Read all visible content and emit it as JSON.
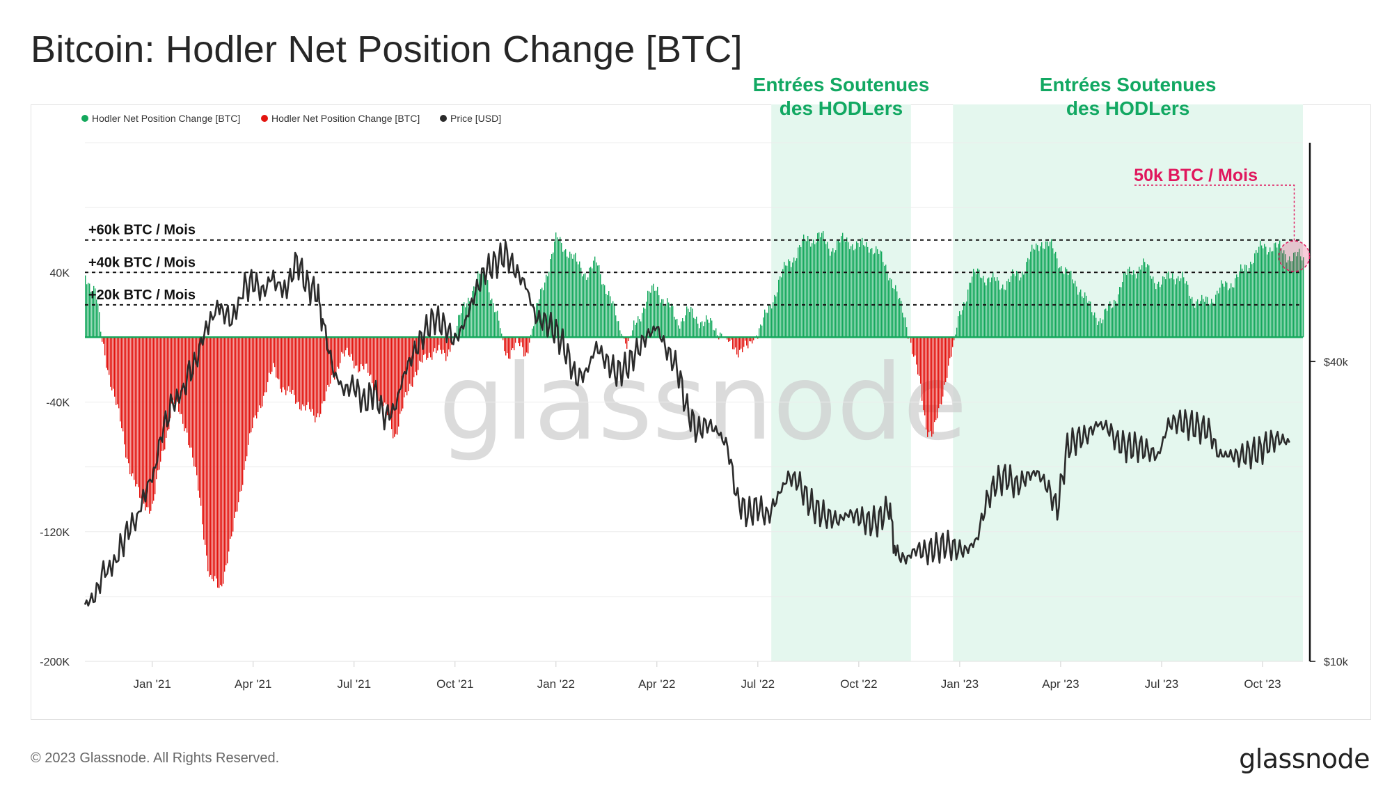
{
  "title": "Bitcoin: Hodler Net Position Change [BTC]",
  "footer": {
    "copyright": "© 2023 Glassnode. All Rights Reserved.",
    "brand": "glassnode"
  },
  "watermark": "glassnode",
  "colors": {
    "positive": "#14a85c",
    "negative": "#e3140f",
    "price": "#2b2b2b",
    "highlight": "#e4f7ee",
    "accent": "#e0175d",
    "green_text": "#12a862"
  },
  "chart_data": {
    "type": "bar",
    "title": "Bitcoin: Hodler Net Position Change [BTC]",
    "legend": [
      {
        "label": "Hodler Net Position Change [BTC]",
        "color": "#14a85c"
      },
      {
        "label": "Hodler Net Position Change [BTC]",
        "color": "#e3140f"
      },
      {
        "label": "Price [USD]",
        "color": "#2b2b2b"
      }
    ],
    "x_ticks": [
      "Jan '21",
      "Apr '21",
      "Jul '21",
      "Oct '21",
      "Jan '22",
      "Apr '22",
      "Jul '22",
      "Oct '22",
      "Jan '23",
      "Apr '23",
      "Jul '23",
      "Oct '23"
    ],
    "x_tick_months": [
      2,
      5,
      8,
      11,
      14,
      17,
      20,
      23,
      26,
      29,
      32,
      35
    ],
    "x_range_months": [
      0,
      36.2
    ],
    "y_left": {
      "ticks": [
        "40K",
        "-40K",
        "-120K",
        "-200K"
      ],
      "tick_values": [
        40000,
        -40000,
        -120000,
        -200000
      ],
      "range": [
        -200000,
        120000
      ]
    },
    "y_right": {
      "ticks": [
        "$40k",
        "$10k"
      ],
      "tick_values": [
        40000,
        10000
      ],
      "scale": "log",
      "range": [
        10000,
        110000
      ]
    },
    "reference_lines": [
      {
        "label": "+60k BTC / Mois",
        "value": 60000
      },
      {
        "label": "+40k BTC / Mois",
        "value": 40000
      },
      {
        "label": "+20k BTC / Mois",
        "value": 20000
      }
    ],
    "highlight_regions": [
      {
        "label_line1": "Entrées Soutenues",
        "label_line2": "des HODLers",
        "start_month": 20.4,
        "end_month": 24.55
      },
      {
        "label_line1": "Entrées Soutenues",
        "label_line2": "des HODLers",
        "start_month": 25.8,
        "end_month": 36.2
      }
    ],
    "annotation": {
      "label": "50k BTC / Mois",
      "month": 35.9,
      "value": 50000
    },
    "net_position_points": [
      [
        0.0,
        37000
      ],
      [
        0.3,
        30000
      ],
      [
        0.5,
        -5000
      ],
      [
        0.8,
        -30000
      ],
      [
        1.2,
        -70000
      ],
      [
        1.6,
        -100000
      ],
      [
        2.0,
        -105000
      ],
      [
        2.3,
        -70000
      ],
      [
        2.6,
        -40000
      ],
      [
        3.0,
        -55000
      ],
      [
        3.4,
        -100000
      ],
      [
        3.7,
        -150000
      ],
      [
        4.0,
        -155000
      ],
      [
        4.4,
        -120000
      ],
      [
        4.8,
        -70000
      ],
      [
        5.2,
        -40000
      ],
      [
        5.6,
        -20000
      ],
      [
        6.0,
        -35000
      ],
      [
        6.4,
        -40000
      ],
      [
        6.8,
        -50000
      ],
      [
        7.2,
        -35000
      ],
      [
        7.6,
        -10000
      ],
      [
        8.0,
        -15000
      ],
      [
        8.3,
        -20000
      ],
      [
        8.6,
        -30000
      ],
      [
        8.9,
        -45000
      ],
      [
        9.2,
        -60000
      ],
      [
        9.5,
        -40000
      ],
      [
        9.8,
        -20000
      ],
      [
        10.1,
        -15000
      ],
      [
        10.4,
        -5000
      ],
      [
        10.7,
        -15000
      ],
      [
        11.0,
        5000
      ],
      [
        11.3,
        20000
      ],
      [
        11.6,
        35000
      ],
      [
        11.9,
        40000
      ],
      [
        12.2,
        15000
      ],
      [
        12.5,
        -10000
      ],
      [
        12.8,
        -5000
      ],
      [
        13.1,
        -10000
      ],
      [
        13.4,
        15000
      ],
      [
        13.7,
        40000
      ],
      [
        14.0,
        60000
      ],
      [
        14.3,
        55000
      ],
      [
        14.6,
        45000
      ],
      [
        14.9,
        40000
      ],
      [
        15.2,
        45000
      ],
      [
        15.5,
        30000
      ],
      [
        15.8,
        10000
      ],
      [
        16.1,
        -5000
      ],
      [
        16.4,
        10000
      ],
      [
        16.7,
        25000
      ],
      [
        17.0,
        30000
      ],
      [
        17.3,
        20000
      ],
      [
        17.6,
        10000
      ],
      [
        17.9,
        15000
      ],
      [
        18.2,
        12000
      ],
      [
        18.5,
        8000
      ],
      [
        18.8,
        5000
      ],
      [
        19.1,
        -3000
      ],
      [
        19.4,
        -7000
      ],
      [
        19.7,
        -8000
      ],
      [
        20.0,
        5000
      ],
      [
        20.3,
        15000
      ],
      [
        20.6,
        35000
      ],
      [
        20.9,
        45000
      ],
      [
        21.2,
        55000
      ],
      [
        21.5,
        60000
      ],
      [
        21.8,
        63000
      ],
      [
        22.1,
        55000
      ],
      [
        22.4,
        58000
      ],
      [
        22.7,
        60000
      ],
      [
        23.0,
        55000
      ],
      [
        23.3,
        58000
      ],
      [
        23.6,
        50000
      ],
      [
        23.9,
        40000
      ],
      [
        24.2,
        20000
      ],
      [
        24.4,
        10000
      ],
      [
        24.6,
        -10000
      ],
      [
        24.8,
        -30000
      ],
      [
        25.0,
        -55000
      ],
      [
        25.2,
        -60000
      ],
      [
        25.4,
        -45000
      ],
      [
        25.6,
        -20000
      ],
      [
        25.8,
        -5000
      ],
      [
        26.0,
        15000
      ],
      [
        26.3,
        35000
      ],
      [
        26.6,
        40000
      ],
      [
        26.9,
        35000
      ],
      [
        27.2,
        33000
      ],
      [
        27.5,
        35000
      ],
      [
        27.8,
        40000
      ],
      [
        28.1,
        50000
      ],
      [
        28.4,
        60000
      ],
      [
        28.7,
        55000
      ],
      [
        29.0,
        45000
      ],
      [
        29.3,
        35000
      ],
      [
        29.6,
        30000
      ],
      [
        29.9,
        15000
      ],
      [
        30.2,
        12000
      ],
      [
        30.5,
        18000
      ],
      [
        30.8,
        35000
      ],
      [
        31.1,
        40000
      ],
      [
        31.4,
        45000
      ],
      [
        31.7,
        38000
      ],
      [
        32.0,
        32000
      ],
      [
        32.3,
        40000
      ],
      [
        32.6,
        35000
      ],
      [
        32.9,
        25000
      ],
      [
        33.2,
        20000
      ],
      [
        33.5,
        25000
      ],
      [
        33.8,
        30000
      ],
      [
        34.1,
        35000
      ],
      [
        34.4,
        40000
      ],
      [
        34.7,
        50000
      ],
      [
        35.0,
        55000
      ],
      [
        35.3,
        57000
      ],
      [
        35.6,
        52000
      ],
      [
        35.9,
        50000
      ],
      [
        36.2,
        48000
      ]
    ],
    "price_points": [
      [
        0.0,
        13000
      ],
      [
        0.3,
        13500
      ],
      [
        0.6,
        15500
      ],
      [
        1.0,
        16500
      ],
      [
        1.3,
        18500
      ],
      [
        1.6,
        19500
      ],
      [
        2.0,
        23000
      ],
      [
        2.3,
        29000
      ],
      [
        2.6,
        33000
      ],
      [
        3.0,
        37000
      ],
      [
        3.3,
        40000
      ],
      [
        3.6,
        47000
      ],
      [
        4.0,
        51000
      ],
      [
        4.3,
        49000
      ],
      [
        4.7,
        56000
      ],
      [
        5.0,
        58000
      ],
      [
        5.3,
        55000
      ],
      [
        5.6,
        60000
      ],
      [
        6.0,
        56000
      ],
      [
        6.3,
        64000
      ],
      [
        6.6,
        57000
      ],
      [
        6.9,
        55000
      ],
      [
        7.1,
        47000
      ],
      [
        7.4,
        38000
      ],
      [
        7.7,
        35000
      ],
      [
        8.0,
        36000
      ],
      [
        8.3,
        33000
      ],
      [
        8.6,
        35000
      ],
      [
        8.9,
        31000
      ],
      [
        9.2,
        32000
      ],
      [
        9.5,
        38000
      ],
      [
        9.8,
        42000
      ],
      [
        10.1,
        46000
      ],
      [
        10.4,
        49000
      ],
      [
        10.7,
        47000
      ],
      [
        11.0,
        44000
      ],
      [
        11.3,
        48000
      ],
      [
        11.6,
        55000
      ],
      [
        11.9,
        61000
      ],
      [
        12.2,
        63000
      ],
      [
        12.5,
        66000
      ],
      [
        12.8,
        61000
      ],
      [
        13.1,
        57000
      ],
      [
        13.4,
        49000
      ],
      [
        13.7,
        48000
      ],
      [
        14.0,
        46000
      ],
      [
        14.3,
        42000
      ],
      [
        14.6,
        37000
      ],
      [
        14.9,
        38000
      ],
      [
        15.2,
        43000
      ],
      [
        15.5,
        40000
      ],
      [
        15.8,
        38000
      ],
      [
        16.1,
        39000
      ],
      [
        16.4,
        42000
      ],
      [
        16.7,
        45000
      ],
      [
        17.0,
        47000
      ],
      [
        17.3,
        42000
      ],
      [
        17.6,
        39000
      ],
      [
        17.9,
        32000
      ],
      [
        18.2,
        29000
      ],
      [
        18.5,
        30000
      ],
      [
        18.8,
        29000
      ],
      [
        19.1,
        27000
      ],
      [
        19.4,
        21000
      ],
      [
        19.7,
        19800
      ],
      [
        20.0,
        20500
      ],
      [
        20.3,
        19500
      ],
      [
        20.6,
        21500
      ],
      [
        20.9,
        23500
      ],
      [
        21.2,
        23000
      ],
      [
        21.5,
        21000
      ],
      [
        21.8,
        20000
      ],
      [
        22.1,
        19500
      ],
      [
        22.4,
        19200
      ],
      [
        22.7,
        19800
      ],
      [
        23.0,
        19500
      ],
      [
        23.3,
        19000
      ],
      [
        23.6,
        19200
      ],
      [
        23.9,
        20500
      ],
      [
        24.1,
        16500
      ],
      [
        24.4,
        16000
      ],
      [
        24.7,
        16800
      ],
      [
        25.0,
        16600
      ],
      [
        25.3,
        16900
      ],
      [
        25.6,
        17200
      ],
      [
        25.9,
        16800
      ],
      [
        26.2,
        16700
      ],
      [
        26.5,
        17500
      ],
      [
        26.8,
        21000
      ],
      [
        27.1,
        23000
      ],
      [
        27.4,
        23500
      ],
      [
        27.7,
        22500
      ],
      [
        28.0,
        23500
      ],
      [
        28.3,
        24000
      ],
      [
        28.6,
        22500
      ],
      [
        28.9,
        20200
      ],
      [
        29.2,
        27000
      ],
      [
        29.5,
        28000
      ],
      [
        29.8,
        28500
      ],
      [
        30.1,
        30000
      ],
      [
        30.4,
        29500
      ],
      [
        30.7,
        27500
      ],
      [
        31.0,
        27000
      ],
      [
        31.3,
        27000
      ],
      [
        31.6,
        26500
      ],
      [
        31.9,
        25800
      ],
      [
        32.2,
        30000
      ],
      [
        32.5,
        30300
      ],
      [
        32.8,
        30000
      ],
      [
        33.1,
        29500
      ],
      [
        33.4,
        29200
      ],
      [
        33.7,
        26000
      ],
      [
        34.0,
        26000
      ],
      [
        34.3,
        25800
      ],
      [
        34.6,
        26200
      ],
      [
        34.9,
        26500
      ],
      [
        35.2,
        27500
      ],
      [
        35.5,
        28000
      ],
      [
        35.8,
        27500
      ]
    ]
  }
}
